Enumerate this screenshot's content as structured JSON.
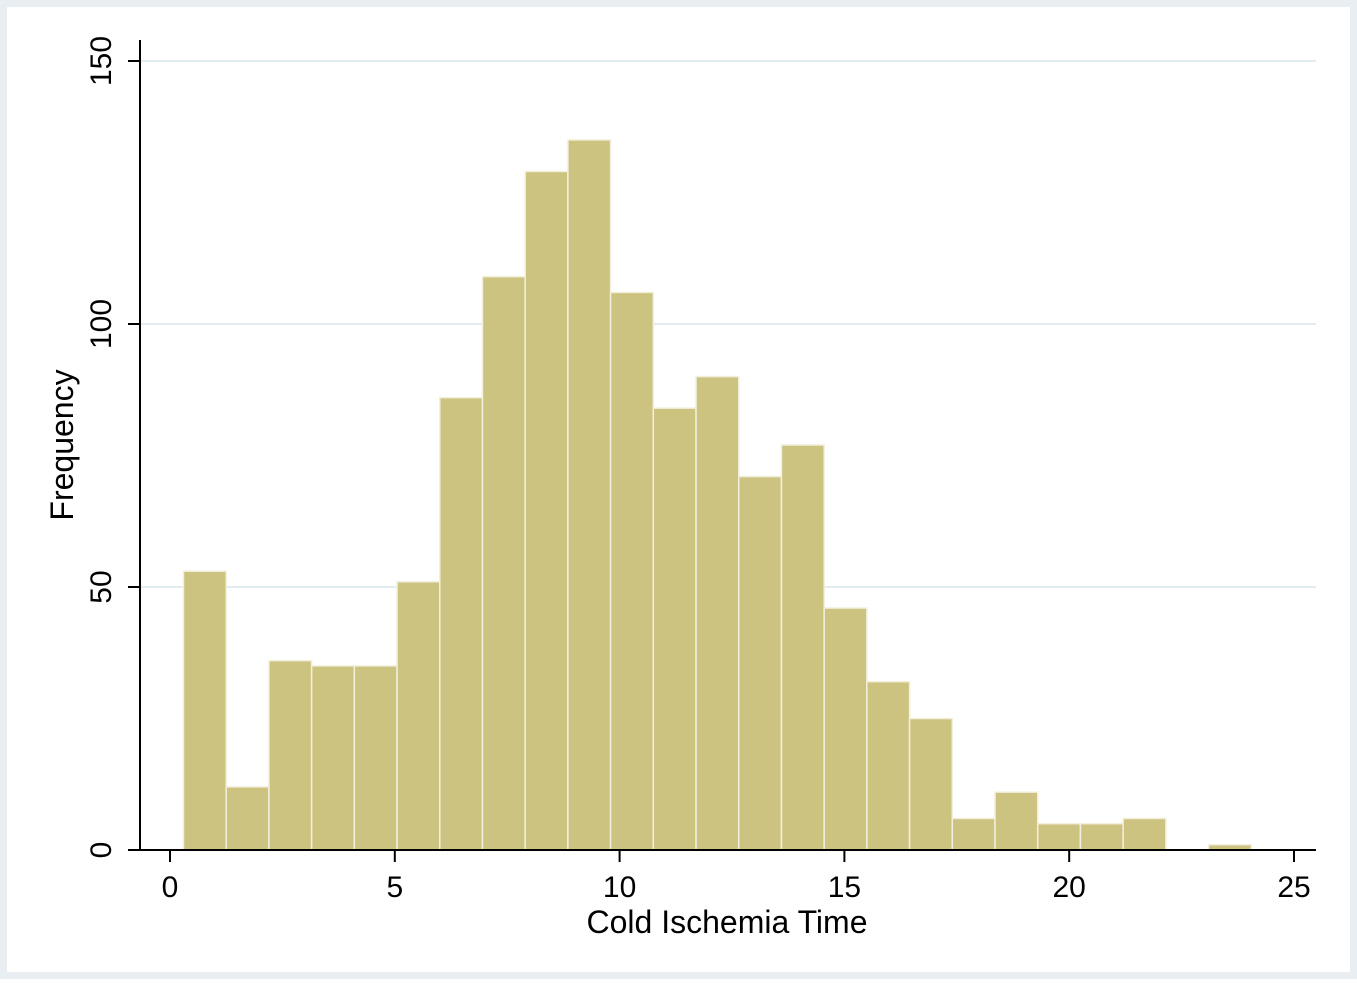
{
  "chart_data": {
    "type": "bar",
    "subtype": "histogram",
    "title": "",
    "xlabel": "Cold Ischemia Time",
    "ylabel": "Frequency",
    "xlim": [
      -0.8,
      25.5
    ],
    "ylim": [
      0,
      150
    ],
    "x_ticks": [
      0,
      5,
      10,
      15,
      20,
      25
    ],
    "y_ticks": [
      0,
      50,
      100,
      150
    ],
    "grid": true,
    "legend": "none",
    "bin_start": 0.3,
    "bin_width": 0.95,
    "bins": [
      {
        "x0": 0.3,
        "x1": 1.25,
        "count": 53
      },
      {
        "x0": 1.25,
        "x1": 2.2,
        "count": 12
      },
      {
        "x0": 2.2,
        "x1": 3.15,
        "count": 36
      },
      {
        "x0": 3.15,
        "x1": 4.1,
        "count": 35
      },
      {
        "x0": 4.1,
        "x1": 5.05,
        "count": 35
      },
      {
        "x0": 5.05,
        "x1": 6.0,
        "count": 51
      },
      {
        "x0": 6.0,
        "x1": 6.95,
        "count": 86
      },
      {
        "x0": 6.95,
        "x1": 7.9,
        "count": 109
      },
      {
        "x0": 7.9,
        "x1": 8.85,
        "count": 129
      },
      {
        "x0": 8.85,
        "x1": 9.8,
        "count": 135
      },
      {
        "x0": 9.8,
        "x1": 10.75,
        "count": 106
      },
      {
        "x0": 10.75,
        "x1": 11.7,
        "count": 84
      },
      {
        "x0": 11.7,
        "x1": 12.65,
        "count": 90
      },
      {
        "x0": 12.65,
        "x1": 13.6,
        "count": 71
      },
      {
        "x0": 13.6,
        "x1": 14.55,
        "count": 77
      },
      {
        "x0": 14.55,
        "x1": 15.5,
        "count": 46
      },
      {
        "x0": 15.5,
        "x1": 16.45,
        "count": 32
      },
      {
        "x0": 16.45,
        "x1": 17.4,
        "count": 25
      },
      {
        "x0": 17.4,
        "x1": 18.35,
        "count": 6
      },
      {
        "x0": 18.35,
        "x1": 19.3,
        "count": 11
      },
      {
        "x0": 19.3,
        "x1": 20.25,
        "count": 5
      },
      {
        "x0": 20.25,
        "x1": 21.2,
        "count": 5
      },
      {
        "x0": 21.2,
        "x1": 22.15,
        "count": 6
      },
      {
        "x0": 22.15,
        "x1": 23.1,
        "count": 0
      },
      {
        "x0": 23.1,
        "x1": 24.05,
        "count": 1
      }
    ]
  },
  "colors": {
    "outer_background": "#e8eef1",
    "plot_background": "#ffffff",
    "bar_fill": "#cdc381",
    "bar_edge": "#f2efdc",
    "gridline": "#e3ecf0",
    "axis": "#000000"
  }
}
